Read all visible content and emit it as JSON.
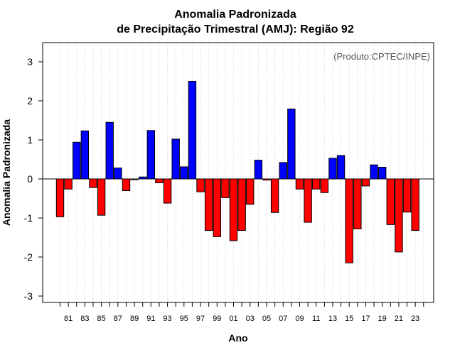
{
  "chart_data": {
    "type": "bar",
    "title": "Anomalia Padronizada",
    "subtitle": "de Precipitação Trimestral (AMJ): Região 92",
    "xlabel": "Ano",
    "ylabel": "Anomalia Padronizada",
    "credit": "(Produto:CPTEC/INPE)",
    "ylim": [
      -3.15,
      3.5
    ],
    "yticks": [
      -3,
      -2,
      -1,
      0,
      1,
      2,
      3
    ],
    "ytick_labels": [
      "-3",
      "-2",
      "-1",
      "0",
      "1",
      "2",
      "3"
    ],
    "xtick_labels": [
      "81",
      "83",
      "85",
      "87",
      "89",
      "91",
      "93",
      "95",
      "97",
      "99",
      "01",
      "03",
      "05",
      "07",
      "09",
      "11",
      "13",
      "15",
      "17",
      "19",
      "21",
      "23"
    ],
    "categories": [
      "1980",
      "1981",
      "1982",
      "1983",
      "1984",
      "1985",
      "1986",
      "1987",
      "1988",
      "1989",
      "1990",
      "1991",
      "1992",
      "1993",
      "1994",
      "1995",
      "1996",
      "1997",
      "1998",
      "1999",
      "2000",
      "2001",
      "2002",
      "2003",
      "2004",
      "2005",
      "2006",
      "2007",
      "2008",
      "2009",
      "2010",
      "2011",
      "2012",
      "2013",
      "2014",
      "2015",
      "2016",
      "2017",
      "2018",
      "2019",
      "2020",
      "2021",
      "2022",
      "2023",
      "2024"
    ],
    "values": [
      -0.97,
      -0.26,
      0.94,
      1.23,
      -0.22,
      -0.93,
      1.45,
      0.28,
      -0.3,
      -0.02,
      0.05,
      1.24,
      -0.1,
      -0.62,
      1.02,
      0.31,
      2.5,
      -0.33,
      -1.32,
      -1.48,
      -0.48,
      -1.58,
      -1.32,
      -0.65,
      0.48,
      -0.03,
      -0.86,
      0.42,
      1.79,
      -0.26,
      -1.11,
      -0.26,
      -0.35,
      0.53,
      0.6,
      -2.15,
      -1.28,
      -0.18,
      0.36,
      0.3,
      -1.17,
      -1.87,
      -0.85,
      -1.32,
      null
    ],
    "positive_color": "#0000ff",
    "negative_color": "#ff0000",
    "grid": true
  }
}
